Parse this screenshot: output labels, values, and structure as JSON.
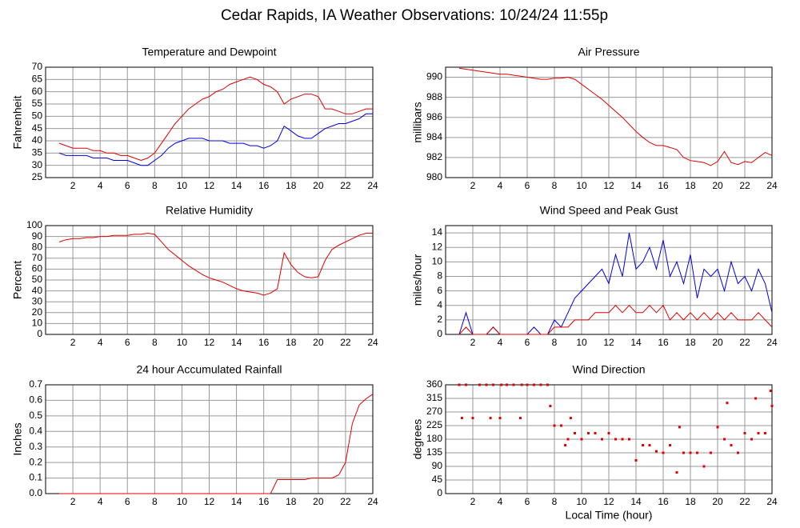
{
  "title": "Cedar Rapids, IA Weather Observations: 10/24/24 11:55p",
  "chart_data": [
    {
      "type": "line",
      "title": "Temperature and Dewpoint",
      "ylabel": "Fahrenheit",
      "x": [
        1,
        1.5,
        2,
        2.5,
        3,
        3.5,
        4,
        4.5,
        5,
        5.5,
        6,
        6.5,
        7,
        7.5,
        8,
        8.5,
        9,
        9.5,
        10,
        10.5,
        11,
        11.5,
        12,
        12.5,
        13,
        13.5,
        14,
        14.5,
        15,
        15.5,
        16,
        16.5,
        17,
        17.5,
        18,
        18.5,
        19,
        19.5,
        20,
        20.5,
        21,
        21.5,
        22,
        22.5,
        23,
        23.5,
        24
      ],
      "series": [
        {
          "color": "#e00000",
          "values": [
            39,
            38,
            37,
            37,
            37,
            36,
            36,
            35,
            35,
            34,
            34,
            33,
            32,
            33,
            35,
            39,
            43,
            47,
            50,
            53,
            55,
            57,
            58,
            60,
            61,
            63,
            64,
            65,
            66,
            65,
            63,
            62,
            60,
            55,
            57,
            58,
            59,
            59,
            58,
            53,
            53,
            52,
            51,
            51,
            52,
            53,
            53
          ]
        },
        {
          "color": "#0000e0",
          "values": [
            35,
            34,
            34,
            34,
            34,
            33,
            33,
            33,
            32,
            32,
            32,
            31,
            30,
            30,
            32,
            34,
            37,
            39,
            40,
            41,
            41,
            41,
            40,
            40,
            40,
            39,
            39,
            39,
            38,
            38,
            37,
            38,
            40,
            46,
            44,
            42,
            41,
            41,
            43,
            45,
            46,
            47,
            47,
            48,
            49,
            51,
            51
          ]
        }
      ],
      "xlim": [
        0,
        24
      ],
      "xticks": [
        2,
        4,
        6,
        8,
        10,
        12,
        14,
        16,
        18,
        20,
        22,
        24
      ],
      "ylim": [
        25,
        70
      ],
      "yticks": [
        25,
        30,
        35,
        40,
        45,
        50,
        55,
        60,
        65,
        70
      ],
      "grid": true
    },
    {
      "type": "line",
      "title": "Air Pressure",
      "ylabel": "millibars",
      "x": [
        1,
        1.5,
        2,
        2.5,
        3,
        3.5,
        4,
        4.5,
        5,
        5.5,
        6,
        6.5,
        7,
        7.5,
        8,
        8.5,
        9,
        9.5,
        10,
        10.5,
        11,
        11.5,
        12,
        12.5,
        13,
        13.5,
        14,
        14.5,
        15,
        15.5,
        16,
        16.5,
        17,
        17.5,
        18,
        18.5,
        19,
        19.5,
        20,
        20.5,
        21,
        21.5,
        22,
        22.5,
        23,
        23.5,
        24
      ],
      "series": [
        {
          "color": "#e00000",
          "values": [
            990.9,
            990.8,
            990.7,
            990.6,
            990.5,
            990.4,
            990.3,
            990.3,
            990.2,
            990.1,
            990,
            989.9,
            989.8,
            989.8,
            989.9,
            989.9,
            990,
            989.8,
            989.3,
            988.8,
            988.3,
            987.8,
            987.2,
            986.6,
            986,
            985.3,
            984.6,
            984,
            983.5,
            983.2,
            983.2,
            983,
            982.8,
            982,
            981.7,
            981.6,
            981.5,
            981.2,
            981.6,
            982.6,
            981.5,
            981.3,
            981.6,
            981.5,
            982,
            982.5,
            982.2
          ]
        }
      ],
      "xlim": [
        0,
        24
      ],
      "xticks": [
        2,
        4,
        6,
        8,
        10,
        12,
        14,
        16,
        18,
        20,
        22,
        24
      ],
      "ylim": [
        980,
        991
      ],
      "yticks": [
        980,
        982,
        984,
        986,
        988,
        990
      ],
      "grid": true
    },
    {
      "type": "line",
      "title": "Relative Humidity",
      "ylabel": "Percent",
      "x": [
        1,
        1.5,
        2,
        2.5,
        3,
        3.5,
        4,
        4.5,
        5,
        5.5,
        6,
        6.5,
        7,
        7.5,
        8,
        8.5,
        9,
        9.5,
        10,
        10.5,
        11,
        11.5,
        12,
        12.5,
        13,
        13.5,
        14,
        14.5,
        15,
        15.5,
        16,
        16.5,
        17,
        17.5,
        18,
        18.5,
        19,
        19.5,
        20,
        20.5,
        21,
        21.5,
        22,
        22.5,
        23,
        23.5,
        24
      ],
      "series": [
        {
          "color": "#e00000",
          "values": [
            85,
            87,
            88,
            88,
            89,
            89,
            90,
            90,
            91,
            91,
            91,
            92,
            92,
            93,
            92,
            85,
            78,
            73,
            68,
            63,
            59,
            55,
            52,
            50,
            48,
            45,
            42,
            40,
            39,
            38,
            36,
            38,
            42,
            75,
            64,
            57,
            53,
            52,
            53,
            68,
            78,
            82,
            85,
            88,
            91,
            93,
            93
          ]
        }
      ],
      "xlim": [
        0,
        24
      ],
      "xticks": [
        2,
        4,
        6,
        8,
        10,
        12,
        14,
        16,
        18,
        20,
        22,
        24
      ],
      "ylim": [
        0,
        100
      ],
      "yticks": [
        0,
        10,
        20,
        30,
        40,
        50,
        60,
        70,
        80,
        90,
        100
      ],
      "grid": true
    },
    {
      "type": "line",
      "title": "Wind Speed and Peak Gust",
      "ylabel": "miles/hour",
      "x": [
        1,
        1.5,
        2,
        2.5,
        3,
        3.5,
        4,
        4.5,
        5,
        5.5,
        6,
        6.5,
        7,
        7.5,
        8,
        8.5,
        9,
        9.5,
        10,
        10.5,
        11,
        11.5,
        12,
        12.5,
        13,
        13.5,
        14,
        14.5,
        15,
        15.5,
        16,
        16.5,
        17,
        17.5,
        18,
        18.5,
        19,
        19.5,
        20,
        20.5,
        21,
        21.5,
        22,
        22.5,
        23,
        23.5,
        24
      ],
      "series": [
        {
          "color": "#0000e0",
          "values": [
            0,
            3,
            0,
            0,
            0,
            1,
            0,
            0,
            0,
            0,
            0,
            1,
            0,
            0,
            2,
            1,
            3,
            5,
            6,
            7,
            8,
            9,
            7,
            11,
            8,
            14,
            9,
            10,
            12,
            9,
            13,
            8,
            10,
            7,
            11,
            5,
            9,
            8,
            9,
            6,
            10,
            7,
            8,
            6,
            9,
            7,
            3
          ]
        },
        {
          "color": "#e00000",
          "values": [
            0,
            1,
            0,
            0,
            0,
            1,
            0,
            0,
            0,
            0,
            0,
            0,
            0,
            0,
            1,
            1,
            1,
            2,
            2,
            2,
            3,
            3,
            3,
            4,
            3,
            4,
            3,
            3,
            4,
            3,
            4,
            2,
            3,
            2,
            3,
            2,
            3,
            2,
            3,
            2,
            3,
            2,
            2,
            2,
            3,
            2,
            1
          ]
        }
      ],
      "xlim": [
        0,
        24
      ],
      "xticks": [
        2,
        4,
        6,
        8,
        10,
        12,
        14,
        16,
        18,
        20,
        22,
        24
      ],
      "ylim": [
        0,
        15
      ],
      "yticks": [
        0,
        2,
        4,
        6,
        8,
        10,
        12,
        14
      ],
      "grid": true
    },
    {
      "type": "line",
      "title": "24 hour Accumulated Rainfall",
      "ylabel": "Inches",
      "x": [
        1,
        1.5,
        2,
        2.5,
        3,
        3.5,
        4,
        4.5,
        5,
        5.5,
        6,
        6.5,
        7,
        7.5,
        8,
        8.5,
        9,
        9.5,
        10,
        10.5,
        11,
        11.5,
        12,
        12.5,
        13,
        13.5,
        14,
        14.5,
        15,
        15.5,
        16,
        16.5,
        17,
        17.5,
        18,
        18.5,
        19,
        19.5,
        20,
        20.5,
        21,
        21.5,
        22,
        22.5,
        23,
        23.5,
        24
      ],
      "series": [
        {
          "color": "#e00000",
          "values": [
            0,
            0,
            0,
            0,
            0,
            0,
            0,
            0,
            0,
            0,
            0,
            0,
            0,
            0,
            0,
            0,
            0,
            0,
            0,
            0,
            0,
            0,
            0,
            0,
            0,
            0,
            0,
            0,
            0,
            0,
            0,
            0,
            0.09,
            0.09,
            0.09,
            0.09,
            0.09,
            0.1,
            0.1,
            0.1,
            0.1,
            0.12,
            0.2,
            0.45,
            0.57,
            0.61,
            0.64
          ]
        }
      ],
      "xlim": [
        0,
        24
      ],
      "xticks": [
        2,
        4,
        6,
        8,
        10,
        12,
        14,
        16,
        18,
        20,
        22,
        24
      ],
      "ylim": [
        0,
        0.7
      ],
      "yticks": [
        {
          "value": 0,
          "label": "0.0"
        },
        0.1,
        0.2,
        0.3,
        0.4,
        0.5,
        0.6,
        0.7
      ],
      "grid": true
    },
    {
      "type": "scatter",
      "title": "Wind Direction",
      "ylabel": "degrees",
      "xlabel": "Local Time (hour)",
      "x": [
        1,
        1.2,
        1.5,
        2,
        2.5,
        3,
        3.3,
        3.5,
        4,
        4.1,
        4.5,
        5,
        5.5,
        5.6,
        6,
        6.5,
        7,
        7.5,
        7.7,
        8,
        8.5,
        8.8,
        9,
        9.2,
        9.5,
        10,
        10.5,
        11,
        11.5,
        12,
        12.5,
        13,
        13.5,
        14,
        14.5,
        15,
        15.5,
        16,
        16.5,
        17,
        17.2,
        17.5,
        18,
        18.5,
        19,
        19.5,
        20,
        20.5,
        20.7,
        21,
        21.5,
        22,
        22.5,
        22.8,
        23,
        23.5,
        23.9,
        24
      ],
      "values": [
        360,
        250,
        360,
        250,
        360,
        360,
        250,
        360,
        250,
        360,
        360,
        360,
        250,
        360,
        360,
        360,
        360,
        360,
        290,
        225,
        225,
        160,
        180,
        250,
        200,
        180,
        200,
        200,
        180,
        200,
        180,
        180,
        180,
        110,
        160,
        160,
        140,
        135,
        160,
        70,
        220,
        135,
        135,
        135,
        90,
        135,
        220,
        180,
        300,
        160,
        135,
        200,
        180,
        315,
        200,
        200,
        340,
        290
      ],
      "color": "#e00000",
      "xlim": [
        0,
        24
      ],
      "xticks": [
        2,
        4,
        6,
        8,
        10,
        12,
        14,
        16,
        18,
        20,
        22,
        24
      ],
      "ylim": [
        0,
        360
      ],
      "yticks": [
        0,
        45,
        90,
        135,
        180,
        225,
        270,
        315,
        360
      ],
      "grid": true
    }
  ]
}
